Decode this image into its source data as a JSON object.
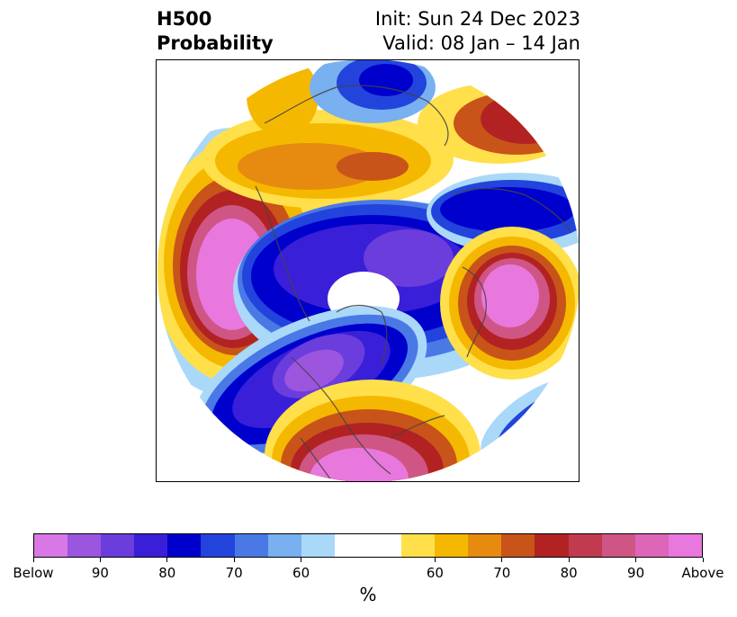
{
  "title": {
    "left_line1": "H500",
    "left_line2": "Probability",
    "right_line1": "Init: Sun 24 Dec 2023",
    "right_line2": "Valid: 08 Jan – 14 Jan"
  },
  "colorbar": {
    "unit": "%",
    "colors": [
      "#d977e6",
      "#9b55de",
      "#6a3ddc",
      "#3a1fd8",
      "#0000cc",
      "#2244dd",
      "#4a79e6",
      "#78b0f0",
      "#aad8f8",
      "#ffffff",
      "#ffffff",
      "#ffe04a",
      "#f5b800",
      "#e68a10",
      "#c8541a",
      "#b22222",
      "#c23a50",
      "#cf5585",
      "#de66b8",
      "#e878dd"
    ],
    "labels": [
      "Below",
      "90",
      "80",
      "70",
      "60",
      "60",
      "70",
      "80",
      "90",
      "Above"
    ]
  },
  "map": {
    "projection": "north-polar-stereographic",
    "colors": {
      "below_strong": "#d977e6",
      "below_mid": "#3a1fd8",
      "below_weak": "#78b0f0",
      "neutral": "#ffffff",
      "above_weak": "#ffe04a",
      "above_mid": "#c8541a",
      "above_strong": "#e878dd"
    }
  }
}
